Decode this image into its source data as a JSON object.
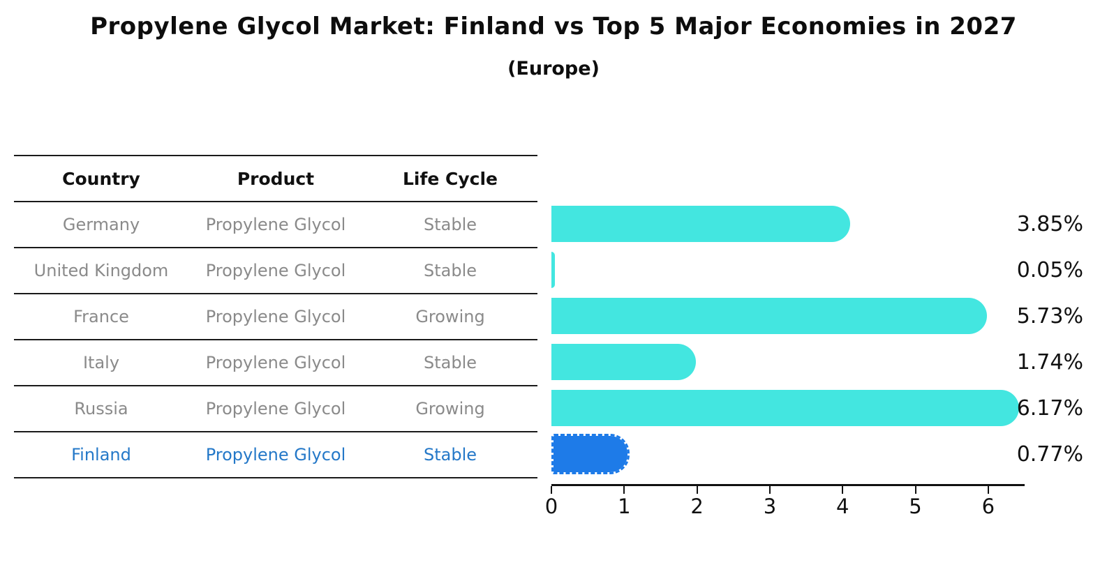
{
  "title": "Propylene Glycol Market: Finland vs Top 5 Major Economies in 2027",
  "subtitle": "(Europe)",
  "table": {
    "headers": [
      "Country",
      "Product",
      "Life Cycle"
    ],
    "rows": [
      {
        "country": "Germany",
        "product": "Propylene Glycol",
        "life_cycle": "Stable",
        "highlight": false
      },
      {
        "country": "United Kingdom",
        "product": "Propylene Glycol",
        "life_cycle": "Stable",
        "highlight": false
      },
      {
        "country": "France",
        "product": "Propylene Glycol",
        "life_cycle": "Growing",
        "highlight": false
      },
      {
        "country": "Italy",
        "product": "Propylene Glycol",
        "life_cycle": "Stable",
        "highlight": false
      },
      {
        "country": "Russia",
        "product": "Propylene Glycol",
        "life_cycle": "Growing",
        "highlight": false
      },
      {
        "country": "Finland",
        "product": "Propylene Glycol",
        "life_cycle": "Stable",
        "highlight": true
      }
    ]
  },
  "chart_data": {
    "type": "bar",
    "orientation": "horizontal",
    "title": "Propylene Glycol Market: Finland vs Top 5 Major Economies in 2027",
    "subtitle": "(Europe)",
    "categories": [
      "Germany",
      "United Kingdom",
      "France",
      "Italy",
      "Russia",
      "Finland"
    ],
    "values": [
      3.85,
      0.05,
      5.73,
      1.74,
      6.17,
      0.77
    ],
    "value_labels": [
      "3.85%",
      "0.05%",
      "5.73%",
      "1.74%",
      "6.17%",
      "0.77%"
    ],
    "xlabel": "",
    "ylabel": "",
    "xlim": [
      0,
      6.5
    ],
    "xticks": [
      "0",
      "1",
      "2",
      "3",
      "4",
      "5",
      "6"
    ],
    "grid": false,
    "legend_position": "none",
    "highlight_index": 5
  },
  "colors": {
    "bar": "#43E6E0",
    "highlight_bar": "#1E7BE8",
    "highlight_border": "#1E7BE8",
    "highlight_text": "#2478C8",
    "row_text": "#8a8a8a",
    "header_text": "#111111",
    "value_label": "#111111",
    "axis": "#111111",
    "background": "#ffffff"
  }
}
